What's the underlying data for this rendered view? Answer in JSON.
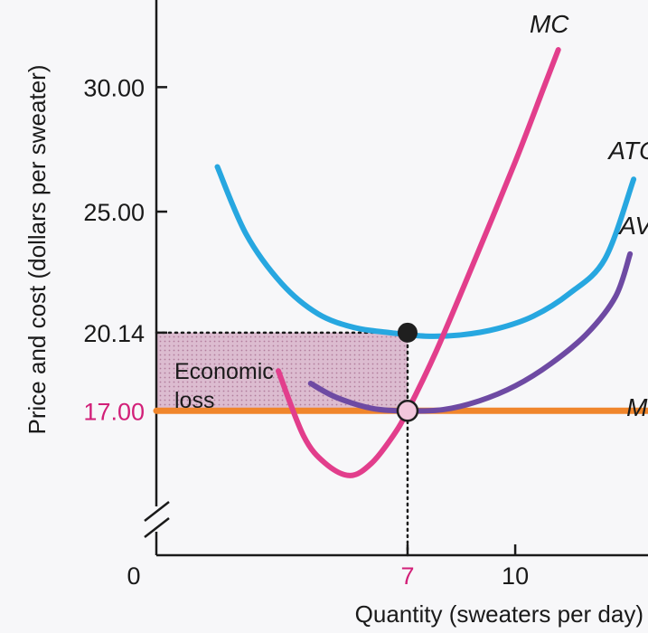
{
  "chart_data": {
    "type": "line",
    "title": "",
    "xlabel": "Quantity (sweaters per day)",
    "ylabel": "Price and cost (dollars per sweater)",
    "xlim": [
      0,
      13.7
    ],
    "ylim": [
      11.2,
      33.5
    ],
    "axis_break": true,
    "x_ticks": [
      {
        "value": 0,
        "label": "0",
        "accent": false
      },
      {
        "value": 7,
        "label": "7",
        "accent": true
      },
      {
        "value": 10,
        "label": "10",
        "accent": false
      }
    ],
    "y_ticks": [
      {
        "value": 30.0,
        "label": "30.00",
        "accent": false
      },
      {
        "value": 25.0,
        "label": "25.00",
        "accent": false
      },
      {
        "value": 20.14,
        "label": "20.14",
        "accent": false
      },
      {
        "value": 17.0,
        "label": "17.00",
        "accent": true
      }
    ],
    "series": [
      {
        "name": "ATC",
        "color": "#27a7e0",
        "points": [
          [
            1.7,
            26.8
          ],
          [
            2.5,
            24.1
          ],
          [
            3.5,
            22.1
          ],
          [
            4.5,
            20.9
          ],
          [
            5.5,
            20.35
          ],
          [
            6.5,
            20.14
          ],
          [
            7.5,
            20.0
          ],
          [
            8.5,
            20.05
          ],
          [
            9.5,
            20.3
          ],
          [
            10.5,
            20.8
          ],
          [
            11.5,
            21.7
          ],
          [
            12.5,
            23.1
          ],
          [
            13.3,
            26.3
          ]
        ]
      },
      {
        "name": "AVC",
        "color": "#6e4aa3",
        "points": [
          [
            4.3,
            18.1
          ],
          [
            5.0,
            17.55
          ],
          [
            6.0,
            17.1
          ],
          [
            7.0,
            17.0
          ],
          [
            8.0,
            17.05
          ],
          [
            9.0,
            17.4
          ],
          [
            10.0,
            18.0
          ],
          [
            11.0,
            18.9
          ],
          [
            12.0,
            20.1
          ],
          [
            12.8,
            21.6
          ],
          [
            13.2,
            23.3
          ]
        ]
      },
      {
        "name": "MC",
        "color": "#e23e8c",
        "points": [
          [
            3.4,
            18.6
          ],
          [
            4.1,
            16.0
          ],
          [
            4.7,
            14.9
          ],
          [
            5.4,
            14.4
          ],
          [
            6.0,
            14.9
          ],
          [
            6.6,
            16.0
          ],
          [
            7.0,
            17.0
          ],
          [
            7.8,
            19.4
          ],
          [
            8.8,
            22.8
          ],
          [
            10.0,
            27.0
          ],
          [
            10.8,
            30.0
          ],
          [
            11.2,
            31.5
          ]
        ]
      },
      {
        "name": "MR",
        "color": "#f0862c",
        "points": [
          [
            0,
            17.0
          ],
          [
            13.7,
            17.0
          ]
        ]
      }
    ],
    "labels": [
      {
        "text": "MC",
        "x": 10.4,
        "y": 32.2
      },
      {
        "text": "ATC",
        "x": 12.6,
        "y": 27.1
      },
      {
        "text": "AVC",
        "x": 12.9,
        "y": 24.1
      },
      {
        "text": "MR",
        "x": 13.1,
        "y": 16.8
      }
    ],
    "points": [
      {
        "name": "atc-minimum-point",
        "x": 7,
        "y": 20.14,
        "style": "filled"
      },
      {
        "name": "shutdown-point",
        "x": 7,
        "y": 17.0,
        "style": "open"
      }
    ],
    "loss_region": {
      "x0": 0,
      "x1": 7,
      "y0": 17.0,
      "y1": 20.14,
      "label": [
        "Economic",
        "loss"
      ]
    }
  }
}
